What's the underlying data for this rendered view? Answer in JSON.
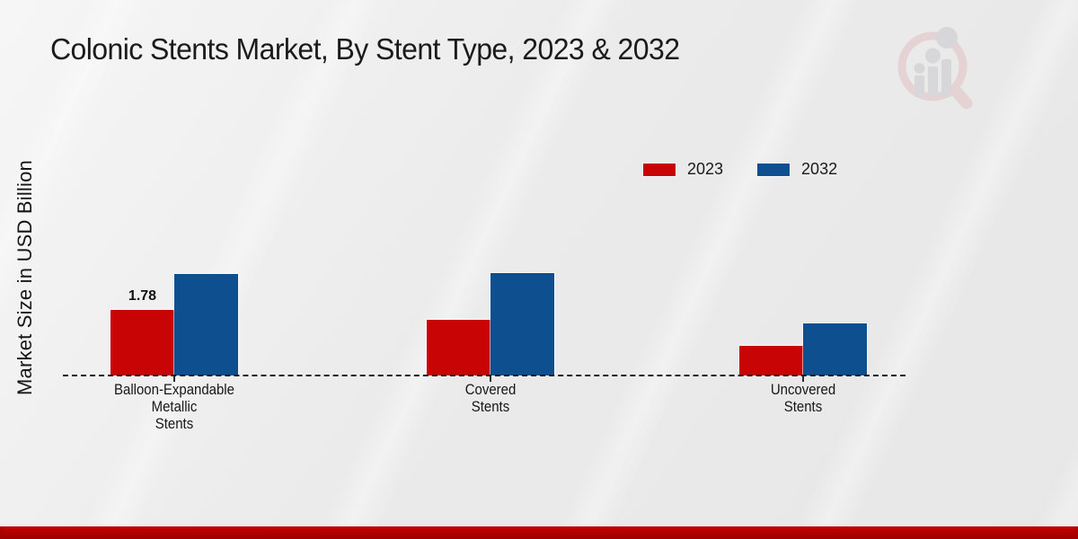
{
  "header": {
    "title": "Colonic Stents Market, By Stent Type, 2023 & 2032"
  },
  "y_axis": {
    "label": "Market Size in USD Billion"
  },
  "legend": {
    "items": [
      {
        "label": "2023",
        "color": "#c80404"
      },
      {
        "label": "2032",
        "color": "#0e4f8f"
      }
    ]
  },
  "chart_data": {
    "type": "bar",
    "title": "Colonic Stents Market, By Stent Type, 2023 & 2032",
    "ylabel": "Market Size in USD Billion",
    "xlabel": "",
    "categories": [
      [
        "Balloon-Expandable",
        "Metallic",
        "Stents"
      ],
      [
        "Covered",
        "Stents"
      ],
      [
        "Uncovered",
        "Stents"
      ]
    ],
    "series": [
      {
        "name": "2023",
        "color": "#c80404",
        "values": [
          1.78,
          1.5,
          0.8
        ]
      },
      {
        "name": "2032",
        "color": "#0e4f8f",
        "values": [
          2.76,
          2.78,
          1.42
        ]
      }
    ],
    "data_labels": [
      {
        "series": 0,
        "category": 0,
        "text": "1.78"
      }
    ],
    "ylim": [
      0,
      3.0
    ],
    "grid": false,
    "legend_position": "upper-right",
    "baseline_style": "dashed"
  },
  "watermark": {
    "name": "market-research-magnifier-logo"
  },
  "footer": {
    "accent_color": "#c00000"
  }
}
